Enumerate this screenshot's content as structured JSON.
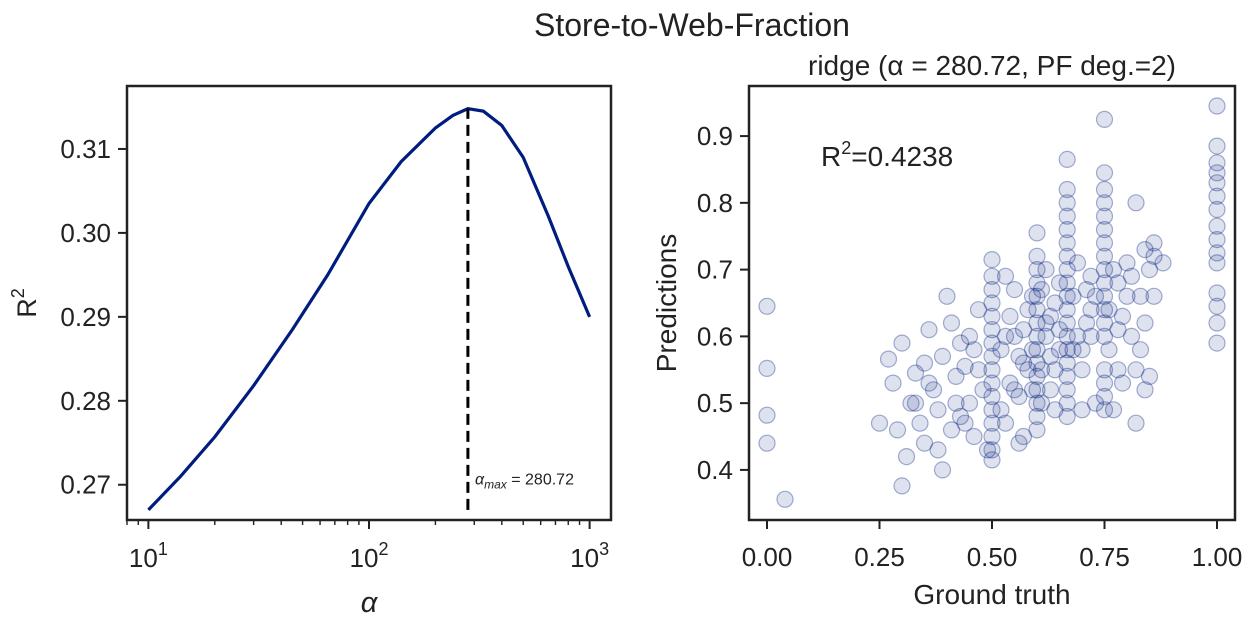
{
  "figure": {
    "title": "Store-to-Web-Fraction"
  },
  "chart_data": [
    {
      "type": "line",
      "xlabel": "α",
      "ylabel": "R",
      "ylabel_sup": "2",
      "xscale": "log",
      "xlim": [
        8,
        1250
      ],
      "ylim": [
        0.2658,
        0.3175
      ],
      "xticks": [
        {
          "value": 10,
          "base": "10",
          "exp": "1"
        },
        {
          "value": 100,
          "base": "10",
          "exp": "2"
        },
        {
          "value": 1000,
          "base": "10",
          "exp": "3"
        }
      ],
      "yticks": [
        {
          "value": 0.27,
          "label": "0.27"
        },
        {
          "value": 0.28,
          "label": "0.28"
        },
        {
          "value": 0.29,
          "label": "0.29"
        },
        {
          "value": 0.3,
          "label": "0.30"
        },
        {
          "value": 0.31,
          "label": "0.31"
        }
      ],
      "series": [
        {
          "color": "#001c7f",
          "x": [
            10,
            14,
            20,
            30,
            45,
            65,
            100,
            140,
            200,
            240,
            280.72,
            330,
            400,
            500,
            650,
            800,
            1000
          ],
          "y": [
            0.267,
            0.271,
            0.2757,
            0.2818,
            0.2885,
            0.295,
            0.3035,
            0.3085,
            0.3125,
            0.314,
            0.3148,
            0.3145,
            0.3128,
            0.309,
            0.302,
            0.296,
            0.29
          ]
        }
      ],
      "vline": {
        "x": 280.72,
        "from_y": 0.267,
        "to_y": 0.3148,
        "style": "dashed",
        "color": "#000000"
      },
      "annotation": {
        "symbol": "α",
        "subscript": "max",
        "text": " = 280.72",
        "x": 290,
        "y": 0.27
      }
    },
    {
      "type": "scatter",
      "title": "ridge (α = 280.72, PF deg.=2)",
      "xlabel": "Ground truth",
      "ylabel": "Predictions",
      "xlim": [
        -0.04,
        1.04
      ],
      "ylim": [
        0.325,
        0.975
      ],
      "xticks": [
        {
          "value": 0.0,
          "label": "0.00"
        },
        {
          "value": 0.25,
          "label": "0.25"
        },
        {
          "value": 0.5,
          "label": "0.50"
        },
        {
          "value": 0.75,
          "label": "0.75"
        },
        {
          "value": 1.0,
          "label": "1.00"
        }
      ],
      "yticks": [
        {
          "value": 0.4,
          "label": "0.4"
        },
        {
          "value": 0.5,
          "label": "0.5"
        },
        {
          "value": 0.6,
          "label": "0.6"
        },
        {
          "value": 0.7,
          "label": "0.7"
        },
        {
          "value": 0.8,
          "label": "0.8"
        },
        {
          "value": 0.9,
          "label": "0.9"
        }
      ],
      "marker_color": "#001c7f",
      "marker_alpha": 0.13,
      "annotation": {
        "base": "R",
        "sup": "2",
        "text": "=0.4238"
      },
      "points": [
        [
          0.0,
          0.645
        ],
        [
          0.0,
          0.552
        ],
        [
          0.0,
          0.482
        ],
        [
          0.0,
          0.44
        ],
        [
          0.04,
          0.356
        ],
        [
          0.3,
          0.376
        ],
        [
          0.25,
          0.47
        ],
        [
          0.27,
          0.566
        ],
        [
          0.28,
          0.53
        ],
        [
          0.29,
          0.46
        ],
        [
          0.3,
          0.59
        ],
        [
          0.31,
          0.42
        ],
        [
          0.32,
          0.5
        ],
        [
          0.33,
          0.545
        ],
        [
          0.34,
          0.47
        ],
        [
          0.35,
          0.44
        ],
        [
          0.36,
          0.61
        ],
        [
          0.37,
          0.52
        ],
        [
          0.38,
          0.43
        ],
        [
          0.39,
          0.4
        ],
        [
          0.4,
          0.66
        ],
        [
          0.41,
          0.62
        ],
        [
          0.42,
          0.5
        ],
        [
          0.43,
          0.48
        ],
        [
          0.44,
          0.555
        ],
        [
          0.45,
          0.6
        ],
        [
          0.46,
          0.45
        ],
        [
          0.47,
          0.64
        ],
        [
          0.48,
          0.52
        ],
        [
          0.49,
          0.43
        ],
        [
          0.33,
          0.5
        ],
        [
          0.36,
          0.53
        ],
        [
          0.39,
          0.57
        ],
        [
          0.41,
          0.46
        ],
        [
          0.43,
          0.59
        ],
        [
          0.45,
          0.5
        ],
        [
          0.47,
          0.55
        ],
        [
          0.38,
          0.49
        ],
        [
          0.35,
          0.56
        ],
        [
          0.42,
          0.54
        ],
        [
          0.44,
          0.47
        ],
        [
          0.46,
          0.58
        ],
        [
          0.5,
          0.415
        ],
        [
          0.5,
          0.43
        ],
        [
          0.5,
          0.45
        ],
        [
          0.5,
          0.47
        ],
        [
          0.5,
          0.49
        ],
        [
          0.5,
          0.51
        ],
        [
          0.5,
          0.53
        ],
        [
          0.5,
          0.55
        ],
        [
          0.5,
          0.57
        ],
        [
          0.5,
          0.59
        ],
        [
          0.5,
          0.61
        ],
        [
          0.5,
          0.63
        ],
        [
          0.5,
          0.65
        ],
        [
          0.5,
          0.67
        ],
        [
          0.5,
          0.69
        ],
        [
          0.5,
          0.715
        ],
        [
          0.52,
          0.49
        ],
        [
          0.53,
          0.6
        ],
        [
          0.54,
          0.53
        ],
        [
          0.55,
          0.67
        ],
        [
          0.56,
          0.57
        ],
        [
          0.57,
          0.45
        ],
        [
          0.58,
          0.64
        ],
        [
          0.59,
          0.52
        ],
        [
          0.55,
          0.6
        ],
        [
          0.57,
          0.56
        ],
        [
          0.53,
          0.47
        ],
        [
          0.59,
          0.58
        ],
        [
          0.54,
          0.63
        ],
        [
          0.56,
          0.51
        ],
        [
          0.58,
          0.55
        ],
        [
          0.52,
          0.58
        ],
        [
          0.55,
          0.52
        ],
        [
          0.57,
          0.61
        ],
        [
          0.56,
          0.44
        ],
        [
          0.53,
          0.69
        ],
        [
          0.59,
          0.66
        ],
        [
          0.6,
          0.46
        ],
        [
          0.6,
          0.48
        ],
        [
          0.6,
          0.5
        ],
        [
          0.6,
          0.52
        ],
        [
          0.6,
          0.54
        ],
        [
          0.6,
          0.56
        ],
        [
          0.6,
          0.58
        ],
        [
          0.6,
          0.6
        ],
        [
          0.6,
          0.62
        ],
        [
          0.6,
          0.64
        ],
        [
          0.6,
          0.66
        ],
        [
          0.6,
          0.68
        ],
        [
          0.6,
          0.7
        ],
        [
          0.6,
          0.72
        ],
        [
          0.6,
          0.755
        ],
        [
          0.61,
          0.55
        ],
        [
          0.62,
          0.6
        ],
        [
          0.63,
          0.52
        ],
        [
          0.64,
          0.65
        ],
        [
          0.65,
          0.58
        ],
        [
          0.62,
          0.7
        ],
        [
          0.64,
          0.55
        ],
        [
          0.63,
          0.63
        ],
        [
          0.65,
          0.68
        ],
        [
          0.61,
          0.5
        ],
        [
          0.64,
          0.49
        ],
        [
          0.62,
          0.62
        ],
        [
          0.65,
          0.61
        ],
        [
          0.63,
          0.57
        ],
        [
          0.61,
          0.67
        ],
        [
          0.667,
          0.48
        ],
        [
          0.667,
          0.5
        ],
        [
          0.667,
          0.52
        ],
        [
          0.667,
          0.54
        ],
        [
          0.667,
          0.56
        ],
        [
          0.667,
          0.58
        ],
        [
          0.667,
          0.6
        ],
        [
          0.667,
          0.62
        ],
        [
          0.667,
          0.64
        ],
        [
          0.667,
          0.66
        ],
        [
          0.667,
          0.68
        ],
        [
          0.667,
          0.7
        ],
        [
          0.667,
          0.72
        ],
        [
          0.667,
          0.74
        ],
        [
          0.667,
          0.76
        ],
        [
          0.667,
          0.78
        ],
        [
          0.667,
          0.8
        ],
        [
          0.667,
          0.82
        ],
        [
          0.667,
          0.865
        ],
        [
          0.68,
          0.66
        ],
        [
          0.69,
          0.6
        ],
        [
          0.7,
          0.58
        ],
        [
          0.71,
          0.67
        ],
        [
          0.72,
          0.64
        ],
        [
          0.73,
          0.5
        ],
        [
          0.69,
          0.71
        ],
        [
          0.7,
          0.55
        ],
        [
          0.72,
          0.69
        ],
        [
          0.71,
          0.62
        ],
        [
          0.73,
          0.66
        ],
        [
          0.7,
          0.49
        ],
        [
          0.68,
          0.58
        ],
        [
          0.72,
          0.6
        ],
        [
          0.75,
          0.49
        ],
        [
          0.75,
          0.51
        ],
        [
          0.75,
          0.53
        ],
        [
          0.75,
          0.55
        ],
        [
          0.75,
          0.6
        ],
        [
          0.75,
          0.62
        ],
        [
          0.75,
          0.64
        ],
        [
          0.75,
          0.66
        ],
        [
          0.75,
          0.68
        ],
        [
          0.75,
          0.7
        ],
        [
          0.75,
          0.72
        ],
        [
          0.75,
          0.74
        ],
        [
          0.75,
          0.76
        ],
        [
          0.75,
          0.78
        ],
        [
          0.75,
          0.8
        ],
        [
          0.75,
          0.82
        ],
        [
          0.75,
          0.845
        ],
        [
          0.75,
          0.925
        ],
        [
          0.76,
          0.64
        ],
        [
          0.77,
          0.49
        ],
        [
          0.78,
          0.68
        ],
        [
          0.79,
          0.53
        ],
        [
          0.8,
          0.71
        ],
        [
          0.81,
          0.6
        ],
        [
          0.82,
          0.47
        ],
        [
          0.83,
          0.66
        ],
        [
          0.84,
          0.73
        ],
        [
          0.85,
          0.54
        ],
        [
          0.86,
          0.72
        ],
        [
          0.88,
          0.71
        ],
        [
          0.76,
          0.58
        ],
        [
          0.78,
          0.61
        ],
        [
          0.8,
          0.66
        ],
        [
          0.82,
          0.55
        ],
        [
          0.84,
          0.62
        ],
        [
          0.86,
          0.66
        ],
        [
          0.77,
          0.7
        ],
        [
          0.79,
          0.63
        ],
        [
          0.81,
          0.69
        ],
        [
          0.83,
          0.58
        ],
        [
          0.85,
          0.7
        ],
        [
          0.78,
          0.55
        ],
        [
          0.82,
          0.8
        ],
        [
          0.86,
          0.74
        ],
        [
          0.84,
          0.52
        ],
        [
          1.0,
          0.59
        ],
        [
          1.0,
          0.62
        ],
        [
          1.0,
          0.645
        ],
        [
          1.0,
          0.665
        ],
        [
          1.0,
          0.71
        ],
        [
          1.0,
          0.725
        ],
        [
          1.0,
          0.745
        ],
        [
          1.0,
          0.765
        ],
        [
          1.0,
          0.79
        ],
        [
          1.0,
          0.81
        ],
        [
          1.0,
          0.83
        ],
        [
          1.0,
          0.845
        ],
        [
          1.0,
          0.86
        ],
        [
          1.0,
          0.885
        ],
        [
          1.0,
          0.945
        ]
      ]
    }
  ]
}
